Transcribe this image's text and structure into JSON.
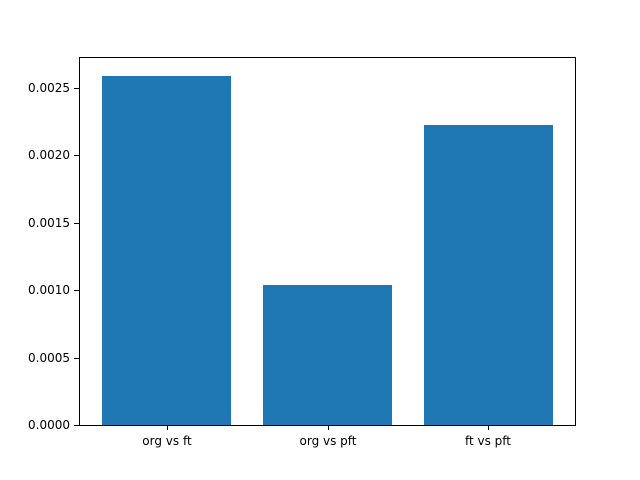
{
  "chart_data": {
    "type": "bar",
    "title": "",
    "xlabel": "",
    "ylabel": "",
    "categories": [
      "org vs ft",
      "org vs pft",
      "ft vs pft"
    ],
    "values": [
      0.00259,
      0.00104,
      0.00222
    ],
    "yticks": [
      0.0,
      0.0005,
      0.001,
      0.0015,
      0.002,
      0.0025
    ],
    "ytick_labels": [
      "0.0000",
      "0.0005",
      "0.0010",
      "0.0015",
      "0.0020",
      "0.0025"
    ],
    "ylim": [
      0,
      0.00272
    ],
    "xlim": [
      -0.54,
      2.54
    ],
    "bar_width_units": 0.8,
    "bar_color": "#1f77b4",
    "frame_color": "#000000",
    "text_color": "#000000",
    "background_color": "#ffffff",
    "grid": false,
    "legend": "none"
  }
}
